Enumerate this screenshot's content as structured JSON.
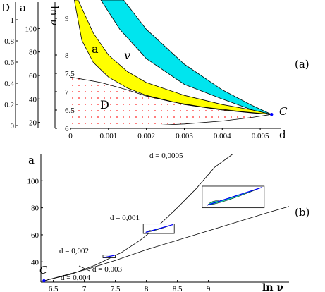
{
  "panels": {
    "top": {
      "tag": "(a)",
      "axis_labels": {
        "left_outer": "D",
        "left_middle": "a",
        "left_inner": "ln ν",
        "x": "d"
      },
      "region_labels": {
        "a": "a",
        "v": "v",
        "D": "D",
        "C": "C"
      }
    },
    "bottom": {
      "tag": "(b)",
      "axis_labels": {
        "y": "a",
        "x": "ln ν"
      },
      "point_label": "C",
      "annotations": [
        "d = 0,0005",
        "d = 0,001",
        "d = 0,002",
        "d = 0,003",
        "d = 0,004"
      ]
    }
  },
  "colors": {
    "band_a": "#ffff00",
    "band_v": "#00e5ee",
    "region_dots": "#ff2020",
    "inset_fill": "#20d0a0",
    "inset_line": "#0000ff",
    "axis": "#000000"
  },
  "chart_data": [
    {
      "type": "area",
      "axes": {
        "x": {
          "label": "d",
          "range": [
            0,
            0.0055
          ],
          "ticks": [
            "0",
            "0.001",
            "0.002",
            "0.003",
            "0.004",
            "0.005"
          ]
        },
        "y_outer": {
          "label": "D",
          "range": [
            0,
            1
          ],
          "ticks": [
            "0",
            "0.2",
            "0.4",
            "0.6",
            "0.8",
            "1"
          ]
        },
        "y_middle": {
          "label": "a",
          "range": [
            15,
            120
          ],
          "ticks": [
            "20",
            "40",
            "60",
            "80",
            "100"
          ]
        },
        "y_inner": {
          "label": "ln ν",
          "range": [
            6,
            9.5
          ],
          "ticks": [
            "6",
            "6.5",
            "7",
            "7.5",
            "8",
            "9"
          ]
        }
      },
      "series": [
        {
          "name": "a",
          "band": "a",
          "upper": [
            [
              0.0002,
              9.5
            ],
            [
              0.0006,
              8.6
            ],
            [
              0.001,
              8.0
            ],
            [
              0.0015,
              7.55
            ],
            [
              0.002,
              7.25
            ],
            [
              0.003,
              6.9
            ],
            [
              0.004,
              6.65
            ],
            [
              0.0048,
              6.5
            ],
            [
              0.0053,
              6.38
            ]
          ],
          "lower": [
            [
              0.0001,
              9.5
            ],
            [
              0.0003,
              8.4
            ],
            [
              0.0006,
              7.8
            ],
            [
              0.001,
              7.4
            ],
            [
              0.0015,
              7.1
            ],
            [
              0.002,
              6.9
            ],
            [
              0.003,
              6.65
            ],
            [
              0.004,
              6.5
            ],
            [
              0.0048,
              6.42
            ],
            [
              0.0053,
              6.38
            ]
          ]
        },
        {
          "name": "v",
          "band": "v",
          "upper": [
            [
              0.0014,
              9.5
            ],
            [
              0.002,
              8.7
            ],
            [
              0.003,
              7.75
            ],
            [
              0.004,
              7.05
            ],
            [
              0.0048,
              6.62
            ],
            [
              0.0053,
              6.38
            ]
          ],
          "lower": [
            [
              0.0008,
              9.5
            ],
            [
              0.0013,
              8.7
            ],
            [
              0.002,
              7.9
            ],
            [
              0.003,
              7.2
            ],
            [
              0.004,
              6.8
            ],
            [
              0.0048,
              6.5
            ],
            [
              0.0053,
              6.38
            ]
          ]
        }
      ],
      "boundary_D": [
        [
          0.0,
          7.4
        ],
        [
          0.0008,
          7.25
        ],
        [
          0.0015,
          7.05
        ],
        [
          0.002,
          6.88
        ],
        [
          0.0027,
          6.72
        ],
        [
          0.0035,
          6.58
        ],
        [
          0.0045,
          6.46
        ],
        [
          0.0053,
          6.38
        ]
      ],
      "lower_curve": [
        [
          0.0,
          6.0
        ],
        [
          0.001,
          6.03
        ],
        [
          0.002,
          6.07
        ],
        [
          0.003,
          6.12
        ],
        [
          0.004,
          6.2
        ],
        [
          0.0048,
          6.3
        ],
        [
          0.0053,
          6.38
        ]
      ],
      "point_C": [
        0.0053,
        6.38
      ]
    },
    {
      "type": "line",
      "xlabel": "ln ν",
      "ylabel": "a",
      "xlim": [
        6.3,
        10.3
      ],
      "ylim": [
        25,
        120
      ],
      "xticks": [
        "6.5",
        "7",
        "7.5",
        "8",
        "8.5",
        "9"
      ],
      "yticks": [
        "40",
        "60",
        "80",
        "100"
      ],
      "series": [
        {
          "upper": [
            [
              6.35,
              26
            ],
            [
              6.8,
              31
            ],
            [
              7.2,
              38
            ],
            [
              7.6,
              47
            ],
            [
              7.9,
              56
            ],
            [
              8.2,
              67
            ],
            [
              8.5,
              80
            ],
            [
              8.8,
              94
            ],
            [
              9.1,
              110
            ],
            [
              9.4,
              125
            ]
          ]
        },
        {
          "lower": [
            [
              6.35,
              26
            ],
            [
              7.0,
              34
            ],
            [
              7.5,
              41
            ],
            [
              8.0,
              49
            ],
            [
              8.5,
              56
            ],
            [
              9.0,
              63
            ],
            [
              9.5,
              70
            ],
            [
              10.0,
              77
            ],
            [
              10.3,
              81
            ]
          ]
        }
      ],
      "point_C": [
        6.35,
        26
      ],
      "insets": [
        {
          "label": "d = 0,0005",
          "x": [
            8.9,
            9.9
          ],
          "y": [
            80,
            96
          ]
        },
        {
          "label": "d = 0,001",
          "x": [
            7.95,
            8.45
          ],
          "y": [
            61,
            68
          ]
        },
        {
          "label": "d = 0,002",
          "x": [
            7.3,
            7.5
          ],
          "y": [
            43,
            45
          ]
        }
      ]
    }
  ]
}
